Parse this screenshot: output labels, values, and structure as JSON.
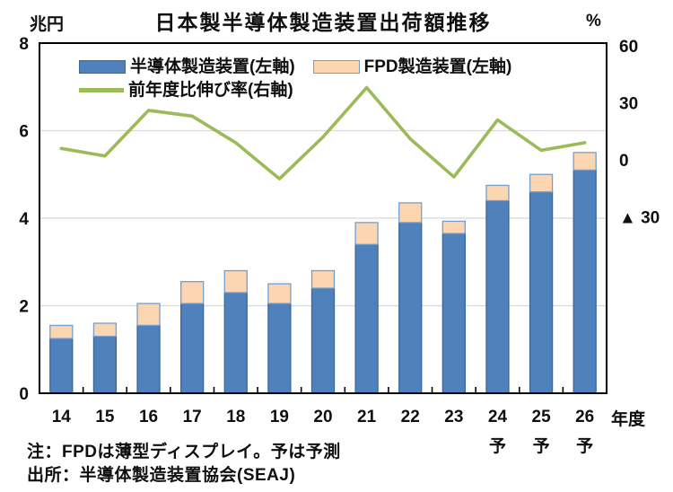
{
  "title": "日本製半導体製造装置出荷額推移",
  "axes": {
    "left_unit": "兆円",
    "right_unit": "%",
    "x_title": "年度"
  },
  "legend": {
    "items": [
      {
        "label": "半導体製造装置(左軸)",
        "swatch": "bar",
        "color": "#4F81BD"
      },
      {
        "label": "FPD製造装置(左軸)",
        "swatch": "bar",
        "color": "#FCD5B1"
      },
      {
        "label": "前年度比伸び率(右軸)",
        "swatch": "line",
        "color": "#9BBB59"
      }
    ]
  },
  "chart_data": {
    "type": "combo-stacked-bar-line",
    "title": "日本製半導体製造装置出荷額推移",
    "categories": [
      "14",
      "15",
      "16",
      "17",
      "18",
      "19",
      "20",
      "21",
      "22",
      "23",
      "24",
      "25",
      "26"
    ],
    "forecast_suffix": "予",
    "forecast_years": [
      "24",
      "25",
      "26"
    ],
    "x_axis_title": "年度",
    "left_axis": {
      "unit": "兆円",
      "min": 0,
      "max": 8,
      "tick_step": 2,
      "ticks": [
        "0",
        "2",
        "4",
        "6",
        "8"
      ],
      "gridlines": [
        2,
        4,
        6
      ]
    },
    "right_axis": {
      "unit": "%",
      "labeled_ticks": [
        {
          "label": "60",
          "value": 60
        },
        {
          "label": "30",
          "value": 30
        },
        {
          "label": "0",
          "value": 0
        },
        {
          "label": "▲ 30",
          "value": -30
        }
      ],
      "negative_marker": "▲"
    },
    "series": [
      {
        "name": "半導体製造装置(左軸)",
        "type": "bar",
        "stack": "shipments",
        "axis": "left",
        "unit": "兆円",
        "color": "#4F81BD",
        "border_color": "#39689B",
        "values": [
          1.25,
          1.3,
          1.55,
          2.05,
          2.3,
          2.05,
          2.4,
          3.4,
          3.9,
          3.65,
          4.4,
          4.6,
          5.1
        ]
      },
      {
        "name": "FPD製造装置(左軸)",
        "type": "bar",
        "stack": "shipments",
        "axis": "left",
        "unit": "兆円",
        "color": "#FCD5B1",
        "border_color": "#739FD0",
        "values": [
          0.3,
          0.3,
          0.5,
          0.5,
          0.5,
          0.45,
          0.4,
          0.5,
          0.45,
          0.28,
          0.35,
          0.4,
          0.4
        ]
      },
      {
        "name": "前年度比伸び率(右軸)",
        "type": "line",
        "axis": "right",
        "unit": "%",
        "color": "#9BBB59",
        "values": [
          6,
          2,
          26,
          23,
          9,
          -10,
          12,
          38,
          11,
          -9,
          21,
          5,
          9
        ]
      }
    ],
    "legend_position": "top-left-inside",
    "grid": "horizontal-only"
  },
  "notes": {
    "note": "注：FPDは薄型ディスプレイ。予は予測",
    "source": "出所：半導体製造装置協会(SEAJ)"
  }
}
